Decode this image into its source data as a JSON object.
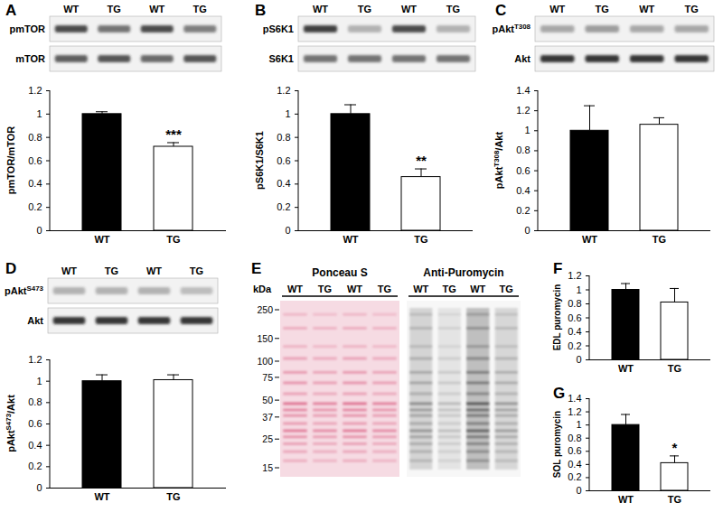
{
  "chart_data": [
    {
      "panel": "A",
      "type": "bar",
      "categories": [
        "WT",
        "TG"
      ],
      "values": [
        1.0,
        0.72
      ],
      "errors": [
        0.02,
        0.035
      ],
      "colors": [
        "#000000",
        "#ffffff"
      ],
      "ylim": [
        0,
        1.2
      ],
      "yticks": [
        0,
        0.2,
        0.4,
        0.6,
        0.8,
        1,
        1.2
      ],
      "y_label": "pmTOR/mTOR",
      "annotations": [
        {
          "category": "TG",
          "text": "***"
        }
      ]
    },
    {
      "panel": "B",
      "type": "bar",
      "categories": [
        "WT",
        "TG"
      ],
      "values": [
        1.0,
        0.46
      ],
      "errors": [
        0.08,
        0.07
      ],
      "colors": [
        "#000000",
        "#ffffff"
      ],
      "ylim": [
        0,
        1.2
      ],
      "yticks": [
        0,
        0.2,
        0.4,
        0.6,
        0.8,
        1,
        1.2
      ],
      "y_label": "pS6K1/S6K1",
      "annotations": [
        {
          "category": "TG",
          "text": "**"
        }
      ]
    },
    {
      "panel": "C",
      "type": "bar",
      "categories": [
        "WT",
        "TG"
      ],
      "values": [
        1.0,
        1.06
      ],
      "errors": [
        0.25,
        0.07
      ],
      "colors": [
        "#000000",
        "#ffffff"
      ],
      "ylim": [
        0,
        1.4
      ],
      "yticks": [
        0,
        0.2,
        0.4,
        0.6,
        0.8,
        1,
        1.2,
        1.4
      ],
      "y_label": "pAktT308/Akt",
      "y_label_sup": "T308"
    },
    {
      "panel": "D",
      "type": "bar",
      "categories": [
        "WT",
        "TG"
      ],
      "values": [
        1.0,
        1.01
      ],
      "errors": [
        0.06,
        0.05
      ],
      "colors": [
        "#000000",
        "#ffffff"
      ],
      "ylim": [
        0,
        1.2
      ],
      "yticks": [
        0,
        0.2,
        0.4,
        0.6,
        0.8,
        1,
        1.2
      ],
      "y_label": "pAktS473/Akt",
      "y_label_sup": "S473"
    },
    {
      "panel": "F",
      "type": "bar",
      "categories": [
        "WT",
        "TG"
      ],
      "values": [
        1.0,
        0.82
      ],
      "errors": [
        0.09,
        0.2
      ],
      "colors": [
        "#000000",
        "#ffffff"
      ],
      "ylim": [
        0,
        1.2
      ],
      "yticks": [
        0,
        0.2,
        0.4,
        0.6,
        0.8,
        1,
        1.2
      ],
      "y_label": "EDL puromycin"
    },
    {
      "panel": "G",
      "type": "bar",
      "categories": [
        "WT",
        "TG"
      ],
      "values": [
        1.0,
        0.42
      ],
      "errors": [
        0.16,
        0.11
      ],
      "colors": [
        "#000000",
        "#ffffff"
      ],
      "ylim": [
        0,
        1.4
      ],
      "yticks": [
        0,
        0.2,
        0.4,
        0.6,
        0.8,
        1,
        1.2,
        1.4
      ],
      "y_label": "SOL puromycin",
      "annotations": [
        {
          "category": "TG",
          "text": "*"
        }
      ]
    }
  ],
  "blots": [
    {
      "panel": "A",
      "lanes": [
        "WT",
        "TG",
        "WT",
        "TG"
      ],
      "rows": [
        {
          "label": "pmTOR",
          "band_intensity": [
            0.8,
            0.6,
            0.8,
            0.55
          ]
        },
        {
          "label": "mTOR",
          "band_intensity": [
            0.7,
            0.75,
            0.65,
            0.75
          ]
        }
      ]
    },
    {
      "panel": "B",
      "lanes": [
        "WT",
        "TG",
        "WT",
        "TG"
      ],
      "rows": [
        {
          "label": "pS6K1",
          "band_intensity": [
            0.85,
            0.3,
            0.8,
            0.3
          ]
        },
        {
          "label": "S6K1",
          "band_intensity": [
            0.6,
            0.6,
            0.6,
            0.6
          ]
        }
      ]
    },
    {
      "panel": "C",
      "lanes": [
        "WT",
        "TG",
        "WT",
        "TG"
      ],
      "rows": [
        {
          "label": "pAktT308",
          "label_sup": "T308",
          "band_intensity": [
            0.35,
            0.4,
            0.35,
            0.35
          ]
        },
        {
          "label": "Akt",
          "band_intensity": [
            0.9,
            0.9,
            0.9,
            0.9
          ]
        }
      ]
    },
    {
      "panel": "D",
      "lanes": [
        "WT",
        "TG",
        "WT",
        "TG"
      ],
      "rows": [
        {
          "label": "pAktS473",
          "label_sup": "S473",
          "band_intensity": [
            0.3,
            0.3,
            0.3,
            0.25
          ]
        },
        {
          "label": "Akt",
          "band_intensity": [
            0.9,
            0.9,
            0.9,
            0.9
          ]
        }
      ]
    }
  ],
  "gel": {
    "panel": "E",
    "headers": [
      "Ponceau S",
      "Anti-Puromycin"
    ],
    "lanes": [
      "WT",
      "TG",
      "WT",
      "TG"
    ],
    "kda_label": "kDa",
    "markers": [
      250,
      150,
      100,
      75,
      50,
      37,
      25,
      15
    ],
    "ponceau_signal": [
      1,
      0.85,
      1,
      0.85
    ],
    "anti_puromycin_signal": [
      0.55,
      0.3,
      0.9,
      0.5
    ]
  }
}
